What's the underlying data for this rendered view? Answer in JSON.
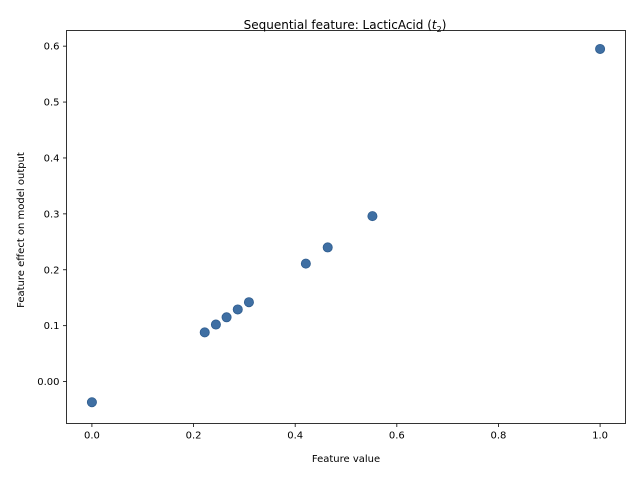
{
  "chart_data": {
    "type": "scatter",
    "title": "Sequential feature: LacticAcid (",
    "title_math": "t",
    "title_sub": "2",
    "title_end": ")",
    "xlabel": "Feature value",
    "ylabel": "Feature effect on model output",
    "xlim": [
      -0.05,
      1.05
    ],
    "ylim": [
      -0.075,
      0.628
    ],
    "xticks": [
      0.0,
      0.2,
      0.4,
      0.6,
      0.8,
      1.0
    ],
    "xtick_labels": [
      "0.0",
      "0.2",
      "0.4",
      "0.6",
      "0.8",
      "1.0"
    ],
    "yticks": [
      0.0,
      0.1,
      0.2,
      0.3,
      0.4,
      0.5,
      0.6
    ],
    "ytick_labels": [
      "0.00",
      "0.1",
      "0.2",
      "0.3",
      "0.4",
      "0.5",
      "0.6"
    ],
    "grid": false,
    "marker_color": "#3f6fa3",
    "points": [
      {
        "x": 0.0,
        "y": -0.037
      },
      {
        "x": 0.222,
        "y": 0.088
      },
      {
        "x": 0.244,
        "y": 0.102
      },
      {
        "x": 0.265,
        "y": 0.115
      },
      {
        "x": 0.287,
        "y": 0.129
      },
      {
        "x": 0.309,
        "y": 0.142
      },
      {
        "x": 0.421,
        "y": 0.211
      },
      {
        "x": 0.464,
        "y": 0.24
      },
      {
        "x": 0.552,
        "y": 0.296
      },
      {
        "x": 1.0,
        "y": 0.595
      }
    ]
  }
}
